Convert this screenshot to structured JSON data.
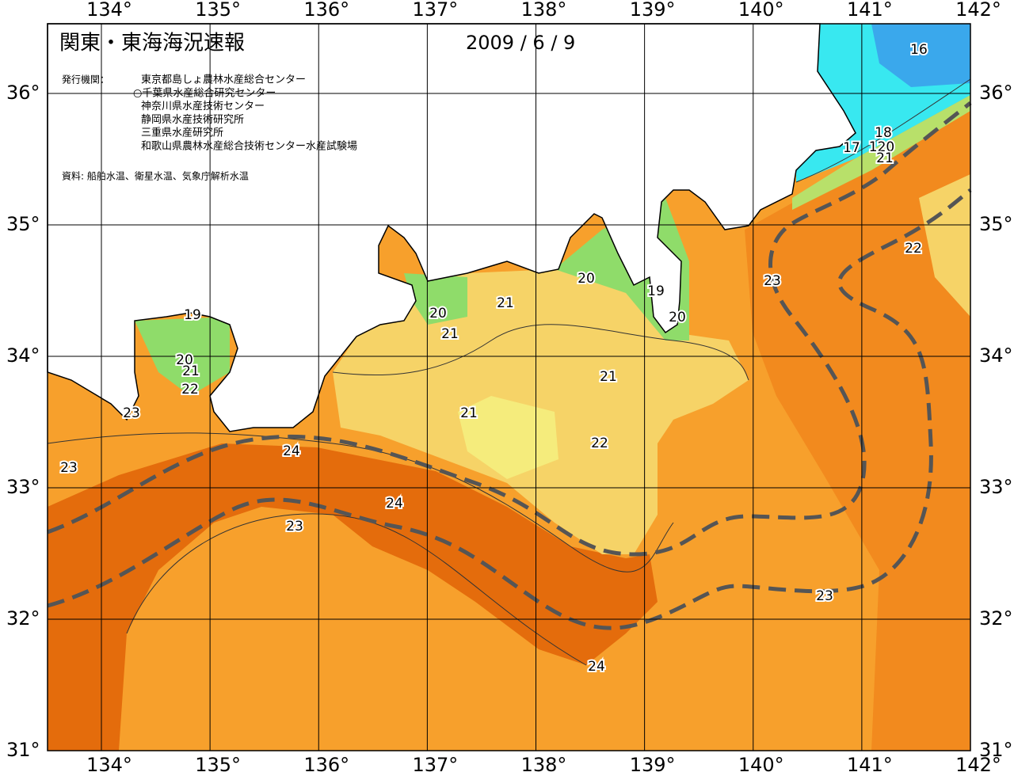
{
  "map": {
    "title": "関東・東海海況速報",
    "date": "2009 / 6 / 9",
    "publisher_label": "発行機関：",
    "publishers": [
      "東京都島しょ農林水産総合センター",
      "○千葉県水産総合研究センター",
      "神奈川県水産技術センター",
      "静岡県水産技術研究所",
      "三重県水産研究所",
      "和歌山県農林水産総合技術センター水産試験場"
    ],
    "source": "資料: 船舶水温、衛星水温、気象庁解析水温",
    "lon_ticks": [
      {
        "value": 134,
        "label": "134°"
      },
      {
        "value": 135,
        "label": "135°"
      },
      {
        "value": 136,
        "label": "136°"
      },
      {
        "value": 137,
        "label": "137°"
      },
      {
        "value": 138,
        "label": "138°"
      },
      {
        "value": 139,
        "label": "139°"
      },
      {
        "value": 140,
        "label": "140°"
      },
      {
        "value": 141,
        "label": "141°"
      },
      {
        "value": 142,
        "label": "142°"
      }
    ],
    "lat_ticks": [
      {
        "value": 36,
        "label": "36°"
      },
      {
        "value": 35,
        "label": "35°"
      },
      {
        "value": 34,
        "label": "34°"
      },
      {
        "value": 33,
        "label": "33°"
      },
      {
        "value": 32,
        "label": "32°"
      },
      {
        "value": 31,
        "label": "31°"
      }
    ],
    "contour_labels": [
      "16",
      "18",
      "17",
      "120",
      "21",
      "22",
      "23",
      "20",
      "19",
      "20",
      "21",
      "20",
      "21",
      "19",
      "20",
      "21",
      "22",
      "23",
      "21",
      "21",
      "22",
      "23",
      "24",
      "24",
      "23",
      "23",
      "24"
    ]
  }
}
